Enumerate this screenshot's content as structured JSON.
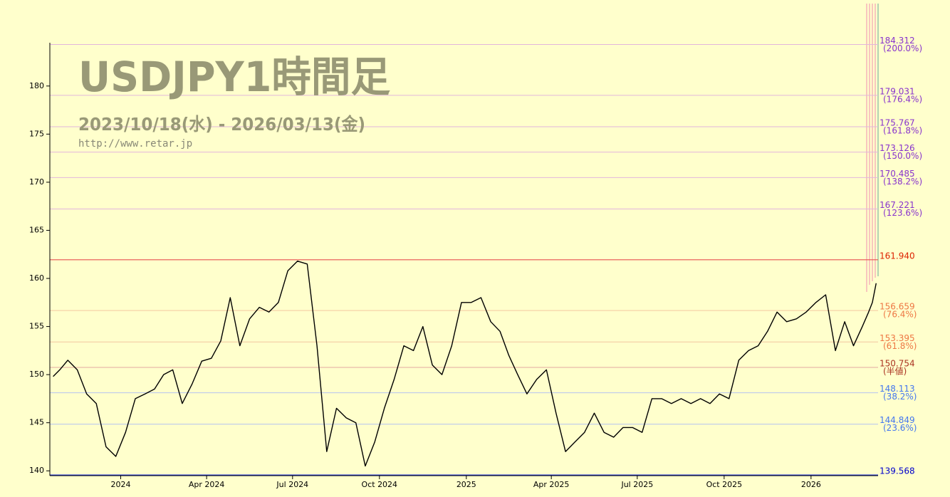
{
  "chart_data": {
    "type": "line",
    "title": "USDJPY1時間足",
    "subtitle": "2023/10/18(水) - 2026/03/13(金)",
    "source": "http://www.retar.jp",
    "xlim": [
      "2023-10-18",
      "2026-03-13"
    ],
    "xticks": [
      {
        "value": "2024-01",
        "label": "2024"
      },
      {
        "value": "2024-04",
        "label": "Apr 2024"
      },
      {
        "value": "2024-07",
        "label": "Jul 2024"
      },
      {
        "value": "2024-10",
        "label": "Oct 2024"
      },
      {
        "value": "2025-01",
        "label": "2025"
      },
      {
        "value": "2025-04",
        "label": "Apr 2025"
      },
      {
        "value": "2025-07",
        "label": "Jul 2025"
      },
      {
        "value": "2025-10",
        "label": "Oct 2025"
      },
      {
        "value": "2026-01",
        "label": "2026"
      }
    ],
    "ylim": [
      139.5,
      184.5
    ],
    "yticks": [
      140,
      145,
      150,
      155,
      160,
      165,
      170,
      175,
      180
    ],
    "series": [
      {
        "color": "#000000",
        "x": [
          "2023-10",
          "2023-10",
          "2023-11",
          "2023-11",
          "2023-11",
          "2023-12",
          "2023-12",
          "2023-12",
          "2024-01",
          "2024-01",
          "2024-01",
          "2024-02",
          "2024-02",
          "2024-02",
          "2024-03",
          "2024-03",
          "2024-03",
          "2024-04",
          "2024-04",
          "2024-04",
          "2024-05",
          "2024-05",
          "2024-05",
          "2024-06",
          "2024-06",
          "2024-06",
          "2024-07",
          "2024-07",
          "2024-07",
          "2024-08",
          "2024-08",
          "2024-08",
          "2024-09",
          "2024-09",
          "2024-09",
          "2024-10",
          "2024-10",
          "2024-10",
          "2024-11",
          "2024-11",
          "2024-11",
          "2024-12",
          "2024-12",
          "2024-12",
          "2025-01",
          "2025-01",
          "2025-01",
          "2025-02",
          "2025-02",
          "2025-02",
          "2025-03",
          "2025-03",
          "2025-03",
          "2025-04",
          "2025-04",
          "2025-04",
          "2025-05",
          "2025-05",
          "2025-05",
          "2025-06",
          "2025-06",
          "2025-06",
          "2025-07",
          "2025-07",
          "2025-07",
          "2025-08",
          "2025-08",
          "2025-08",
          "2025-09",
          "2025-09",
          "2025-09",
          "2025-10",
          "2025-10",
          "2025-10",
          "2025-11",
          "2025-11",
          "2025-11",
          "2025-12",
          "2025-12",
          "2025-12",
          "2026-01",
          "2026-01",
          "2026-01",
          "2026-02",
          "2026-02",
          "2026-02",
          "2026-03",
          "2026-03",
          "2026-03"
        ],
        "values": [
          149.8,
          150.5,
          151.5,
          150.5,
          148,
          147,
          142.5,
          141.5,
          144,
          147.5,
          148,
          148.5,
          150,
          150.5,
          147,
          149,
          151.4,
          151.7,
          153.5,
          158,
          153,
          155.8,
          157,
          156.5,
          157.5,
          160.8,
          161.8,
          161.5,
          153,
          142,
          146.5,
          145.5,
          145,
          140.5,
          143,
          146.5,
          149.5,
          153,
          152.5,
          155,
          151,
          150,
          153,
          157.5,
          157.5,
          158,
          155.5,
          154.5,
          152,
          150,
          148,
          149.5,
          150.5,
          146,
          142,
          143,
          144,
          146,
          144,
          143.5,
          144.5,
          144.5,
          144,
          147.5,
          147.5,
          147,
          147.5,
          147,
          147.5,
          147,
          148,
          147.5,
          151.5,
          152.5,
          153,
          154.5,
          156.5,
          155.5,
          155.8,
          156.5,
          157.5,
          158.3,
          152.5,
          155.5,
          153,
          155,
          156.5,
          157.5,
          159.5
        ]
      }
    ],
    "levels": [
      {
        "value": 184.312,
        "value_label": "184.312",
        "ratio": "(200.0%)",
        "color": "#8833cc",
        "line_color": "#e2b6dc"
      },
      {
        "value": 179.031,
        "value_label": "179.031",
        "ratio": "(176.4%)",
        "color": "#8833cc",
        "line_color": "#e2b6dc"
      },
      {
        "value": 175.767,
        "value_label": "175.767",
        "ratio": "(161.8%)",
        "color": "#8833cc",
        "line_color": "#e2b6dc"
      },
      {
        "value": 173.126,
        "value_label": "173.126",
        "ratio": "(150.0%)",
        "color": "#8833cc",
        "line_color": "#e2b6dc"
      },
      {
        "value": 170.485,
        "value_label": "170.485",
        "ratio": "(138.2%)",
        "color": "#8833cc",
        "line_color": "#e2b6dc"
      },
      {
        "value": 167.221,
        "value_label": "167.221",
        "ratio": "(123.6%)",
        "color": "#8833cc",
        "line_color": "#e2b6dc"
      },
      {
        "value": 161.94,
        "value_label": "161.940",
        "color": "#dd2200",
        "line_color": "#e85050"
      },
      {
        "value": 156.659,
        "value_label": "156.659",
        "ratio": "(76.4%)",
        "color": "#ee7744",
        "line_color": "#f3c6a0"
      },
      {
        "value": 153.395,
        "value_label": "153.395",
        "ratio": "(61.8%)",
        "color": "#ee7744",
        "line_color": "#f3c6a0"
      },
      {
        "value": 150.754,
        "value_label": "150.754",
        "ratio": "(半値)",
        "color": "#aa3322",
        "line_color": "#e3a8a0"
      },
      {
        "value": 148.113,
        "value_label": "148.113",
        "ratio": "(38.2%)",
        "color": "#4477ee",
        "line_color": "#b4c2f0"
      },
      {
        "value": 144.849,
        "value_label": "144.849",
        "ratio": "(23.6%)",
        "color": "#4477ee",
        "line_color": "#b4c2f0"
      },
      {
        "value": 139.568,
        "value_label": "139.568",
        "color": "#0000cc",
        "line_color": "#2233dd"
      }
    ]
  }
}
